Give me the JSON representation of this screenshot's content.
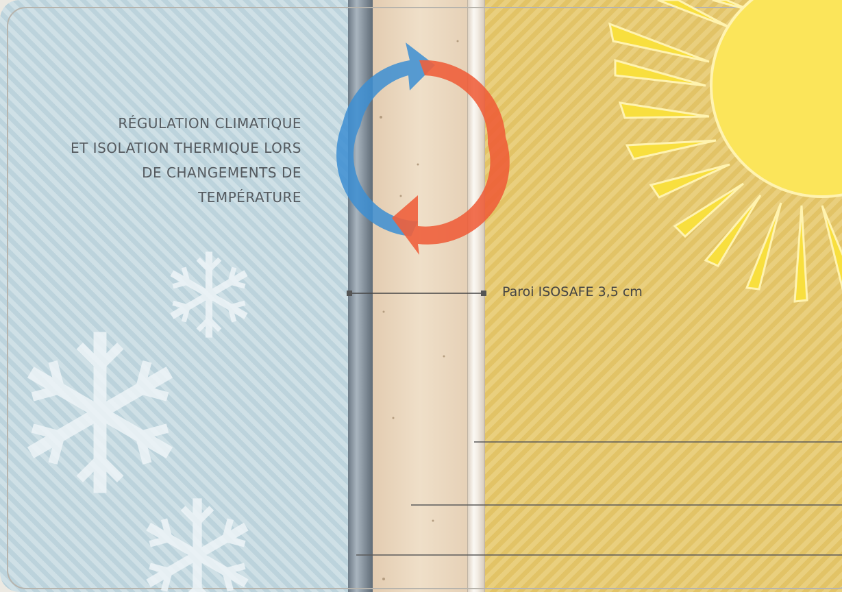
{
  "heading": {
    "lines": [
      "RÉGULATION CLIMATIQUE",
      "ET ISOLATION THERMIQUE LORS",
      "DE CHANGEMENTS DE",
      "TEMPÉRATURE"
    ]
  },
  "callout": {
    "label": "Paroi ISOSAFE 3,5 cm"
  },
  "colors": {
    "cold_side": "#c7dbe2",
    "warm_side": "#e6c972",
    "arrow_cold": "#3d8fd3",
    "arrow_warm": "#ef5a35",
    "sun": "#fbe55a"
  },
  "icons": [
    "snowflake-icon",
    "sun-icon",
    "cycle-arrows-icon"
  ]
}
